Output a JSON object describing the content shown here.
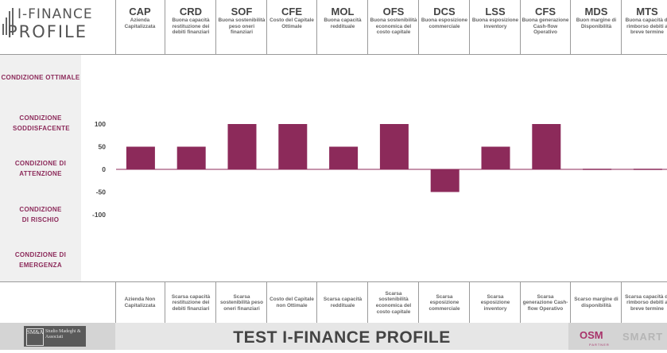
{
  "logo": {
    "line1": "I-FINANCE",
    "line2": "PROFILE"
  },
  "indicators": [
    {
      "code": "CAP",
      "desc": "Azienda Capitalizzata",
      "footer": "Azienda Non Capitalizzata"
    },
    {
      "code": "CRD",
      "desc": "Buona capacità restituzione dei debiti finanziari",
      "footer": "Scarsa capacità restituzione dei debiti finanziari"
    },
    {
      "code": "SOF",
      "desc": "Buona sostenibilità peso oneri finanziari",
      "footer": "Scarsa sostenibilità peso oneri finanziari"
    },
    {
      "code": "CFE",
      "desc": "Costo del Capitale Ottimale",
      "footer": "Costo del Capitale non Ottimale"
    },
    {
      "code": "MOL",
      "desc": "Buona capacità reddituale",
      "footer": "Scarsa capacità reddituale"
    },
    {
      "code": "OFS",
      "desc": "Buona sostenibilità economica del costo capitale",
      "footer": "Scarsa sostenibilità economica del costo capitale"
    },
    {
      "code": "DCS",
      "desc": "Buona esposizione commerciale",
      "footer": "Scarsa esposizione commerciale"
    },
    {
      "code": "LSS",
      "desc": "Buona esposizione inventory",
      "footer": "Scarsa esposizione inventory"
    },
    {
      "code": "CFS",
      "desc": "Buona generazione Cash-flow Operativo",
      "footer": "Scarsa generazione Cash-flow Operativo"
    },
    {
      "code": "MDS",
      "desc": "Buon margine di Disponibilità",
      "footer": "Scarso margine di disponibilità"
    },
    {
      "code": "MTS",
      "desc": "Buona capacità di rimborso debiti a breve termine",
      "footer": "Scarsa capacità di rimborso debiti a breve termine"
    }
  ],
  "conditions": [
    {
      "label": "CONDIZIONE OTTIMALE"
    },
    {
      "label": "CONDIZIONE SODDISFACENTE"
    },
    {
      "label": "CONDIZIONE DI ATTENZIONE"
    },
    {
      "label": "CONDIZIONE DI RISCHIO"
    },
    {
      "label": "CONDIZIONE DI EMERGENZA"
    }
  ],
  "chart_data": {
    "type": "bar",
    "categories": [
      "CAP",
      "CRD",
      "SOF",
      "CFE",
      "MOL",
      "OFS",
      "DCS",
      "LSS",
      "CFS",
      "MDS",
      "MTS"
    ],
    "values": [
      50,
      50,
      100,
      100,
      50,
      100,
      -50,
      50,
      100,
      0,
      0
    ],
    "ylim": [
      -100,
      100
    ],
    "yticks": [
      100,
      50,
      0,
      -50,
      -100
    ],
    "bar_color": "#8c2a5a",
    "grid": false
  },
  "footer": {
    "title": "TEST I-FINANCE PROFILE",
    "studio_mark": "SM&A",
    "studio_text": "Studio Madeghi & Associati",
    "osm_logo": "OSM",
    "osm_sub": "PARTNER",
    "smart_logo": "SMART"
  },
  "colors": {
    "accent": "#8c2a5a",
    "label_text": "#8c2a5a",
    "bottom_bar": "#d4d4d4"
  }
}
